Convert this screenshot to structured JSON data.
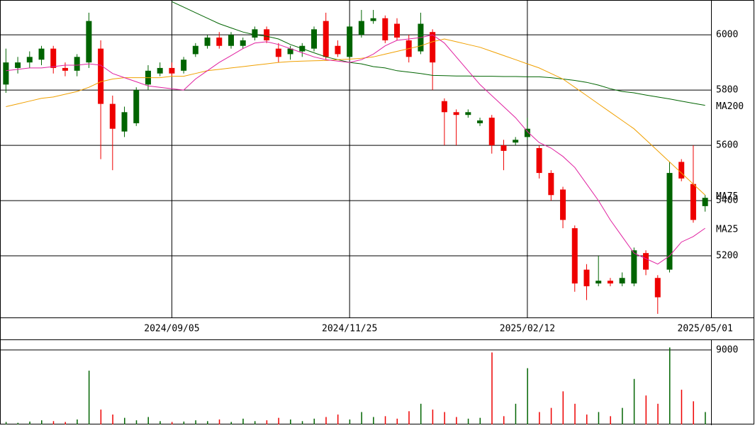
{
  "chart_data": [
    {
      "type": "candlestick",
      "categories": [
        null,
        null,
        null,
        null,
        null,
        null,
        null,
        null,
        null,
        null,
        null,
        null,
        null,
        null,
        "2024/09/05",
        null,
        null,
        null,
        null,
        null,
        null,
        null,
        null,
        null,
        null,
        null,
        null,
        null,
        null,
        "2024/11/25",
        null,
        null,
        null,
        null,
        null,
        null,
        null,
        null,
        null,
        null,
        null,
        null,
        null,
        null,
        "2025/02/12",
        null,
        null,
        null,
        null,
        null,
        null,
        null,
        null,
        null,
        null,
        null,
        null,
        null,
        null,
        "2025/05/01"
      ],
      "open": [
        5820,
        5880,
        5900,
        5910,
        5950,
        5880,
        5870,
        5900,
        5950,
        5750,
        5650,
        5680,
        5820,
        5860,
        5880,
        5870,
        5930,
        5960,
        5990,
        5960,
        5960,
        5990,
        6020,
        5950,
        5930,
        5940,
        5950,
        6050,
        5960,
        5920,
        6000,
        6050,
        6060,
        6040,
        5980,
        5940,
        6010,
        5760,
        5720,
        5710,
        5680,
        5700,
        5600,
        5610,
        5630,
        5590,
        5500,
        5440,
        5300,
        5150,
        5100,
        5110,
        5100,
        5100,
        5210,
        5120,
        5150,
        5540,
        5460,
        5380
      ],
      "high": [
        5950,
        5920,
        5940,
        5960,
        5960,
        5900,
        5930,
        6080,
        5980,
        5780,
        5740,
        5810,
        5890,
        5900,
        5900,
        5920,
        5970,
        6000,
        6010,
        6010,
        5990,
        6030,
        6030,
        5970,
        5960,
        5970,
        6030,
        6080,
        5980,
        6040,
        6090,
        6090,
        6070,
        6060,
        6000,
        6080,
        6020,
        5770,
        5730,
        5730,
        5700,
        5710,
        5620,
        5630,
        5700,
        5600,
        5510,
        5450,
        5310,
        5170,
        5200,
        5120,
        5140,
        5230,
        5220,
        5130,
        5540,
        5550,
        5600,
        5420
      ],
      "low": [
        5790,
        5860,
        5880,
        5890,
        5860,
        5850,
        5850,
        5880,
        5550,
        5510,
        5630,
        5670,
        5800,
        5850,
        5850,
        5860,
        5920,
        5950,
        5950,
        5950,
        5950,
        5980,
        5970,
        5900,
        5910,
        5920,
        5940,
        5910,
        5920,
        5910,
        5990,
        6040,
        5970,
        5980,
        5900,
        5930,
        5800,
        5600,
        5600,
        5700,
        5670,
        5570,
        5510,
        5600,
        5620,
        5480,
        5400,
        5300,
        5070,
        5040,
        5090,
        5090,
        5090,
        5090,
        5130,
        4990,
        5140,
        5470,
        5320,
        5360
      ],
      "close": [
        5900,
        5900,
        5920,
        5950,
        5880,
        5870,
        5920,
        6050,
        5750,
        5660,
        5720,
        5800,
        5870,
        5880,
        5860,
        5910,
        5960,
        5990,
        5960,
        6000,
        5980,
        6020,
        5980,
        5920,
        5950,
        5960,
        6020,
        5920,
        5930,
        6030,
        6050,
        6060,
        5980,
        5990,
        5920,
        6040,
        5900,
        5720,
        5710,
        5720,
        5690,
        5600,
        5580,
        5620,
        5660,
        5500,
        5420,
        5330,
        5100,
        5090,
        5110,
        5100,
        5120,
        5220,
        5150,
        5050,
        5500,
        5480,
        5330,
        5410
      ],
      "up_color": "#006400",
      "down_color": "#ee0000",
      "series": [
        {
          "name": "MA200",
          "color": "#006400",
          "values": [
            null,
            null,
            null,
            null,
            null,
            null,
            null,
            null,
            null,
            null,
            null,
            null,
            null,
            null,
            6120,
            6100,
            6080,
            6060,
            6040,
            6025,
            6010,
            6000,
            5995,
            5985,
            5965,
            5950,
            5935,
            5920,
            5910,
            5900,
            5895,
            5885,
            5880,
            5870,
            5865,
            5860,
            5853,
            5852,
            5851,
            5851,
            5850,
            5850,
            5849,
            5849,
            5848,
            5848,
            5845,
            5840,
            5835,
            5828,
            5818,
            5805,
            5795,
            5790,
            5782,
            5775,
            5768,
            5760,
            5752,
            5745
          ]
        },
        {
          "name": "MA75",
          "color": "#f0a000",
          "values": [
            5740,
            5750,
            5760,
            5770,
            5775,
            5785,
            5795,
            5810,
            5830,
            5840,
            5845,
            5845,
            5845,
            5845,
            5850,
            5850,
            5860,
            5870,
            5875,
            5880,
            5885,
            5890,
            5895,
            5900,
            5903,
            5905,
            5906,
            5907,
            5910,
            5912,
            5915,
            5920,
            5930,
            5940,
            5950,
            5960,
            5975,
            5985,
            5975,
            5965,
            5955,
            5940,
            5925,
            5910,
            5895,
            5880,
            5860,
            5840,
            5810,
            5780,
            5750,
            5720,
            5690,
            5660,
            5620,
            5580,
            5540,
            5500,
            5460,
            5420
          ]
        },
        {
          "name": "MA25",
          "color": "#e020a0",
          "values": [
            5870,
            5875,
            5880,
            5880,
            5885,
            5890,
            5890,
            5895,
            5890,
            5860,
            5845,
            5830,
            5815,
            5810,
            5805,
            5800,
            5840,
            5870,
            5900,
            5925,
            5950,
            5970,
            5975,
            5965,
            5950,
            5935,
            5920,
            5910,
            5905,
            5900,
            5910,
            5930,
            5960,
            5980,
            5985,
            5990,
            6000,
            5970,
            5920,
            5870,
            5820,
            5780,
            5740,
            5700,
            5650,
            5610,
            5590,
            5560,
            5520,
            5460,
            5400,
            5330,
            5270,
            5210,
            5190,
            5170,
            5200,
            5250,
            5270,
            5300
          ]
        }
      ],
      "ylim": [
        4977,
        6126
      ],
      "yticks": [
        5200,
        5400,
        5600,
        5800,
        6000
      ],
      "grid": true
    },
    {
      "type": "bar",
      "values": [
        300,
        200,
        350,
        500,
        400,
        300,
        600,
        6500,
        1800,
        1200,
        800,
        500,
        900,
        400,
        300,
        350,
        500,
        400,
        600,
        300,
        700,
        400,
        500,
        800,
        600,
        400,
        700,
        900,
        1200,
        600,
        1500,
        900,
        1000,
        700,
        1600,
        2500,
        1800,
        1500,
        900,
        700,
        800,
        8700,
        1000,
        2500,
        6800,
        1500,
        2000,
        4000,
        2500,
        1200,
        1500,
        1000,
        2000,
        5500,
        3500,
        2500,
        9300,
        4200,
        2800,
        1500
      ],
      "ylim": [
        0,
        10189
      ],
      "yticks": [
        9000
      ],
      "grid": true
    }
  ]
}
